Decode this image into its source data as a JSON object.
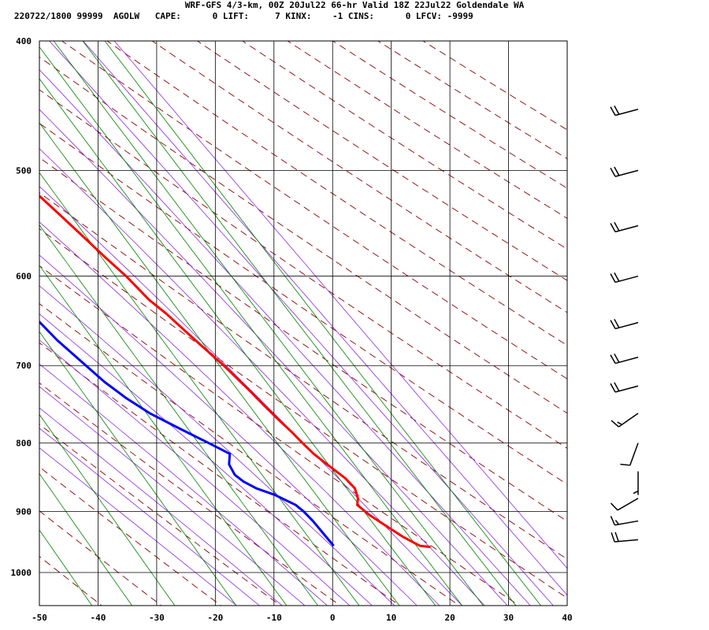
{
  "header": {
    "title": "WRF-GFS 4/3-km, 00Z 20Jul22 66-hr Valid 18Z 22Jul22 Goldendale WA",
    "subtitle": "220722/1800 99999  AGOLW   CAPE:      0 LIFT:     7 KINX:    -1 CINS:      0 LFCV: -9999"
  },
  "chart_data": {
    "type": "skew-t",
    "xlabel": "",
    "ylabel": "",
    "x_ticks": [
      -50,
      -40,
      -30,
      -20,
      -10,
      0,
      10,
      20,
      30,
      40
    ],
    "y_ticks": [
      400,
      500,
      600,
      700,
      800,
      900,
      1000
    ],
    "x_range": [
      -50,
      40
    ],
    "p_range": [
      400,
      1040
    ],
    "y_scale": "log",
    "grid": true,
    "colors": {
      "temperature": "#ff0000",
      "dewpoint": "#0000ff",
      "dry_adiabat": "#8b0000",
      "moist_adiabat": "#8a2be2",
      "mixing_ratio": "#008000",
      "grid": "#000000"
    },
    "series": [
      {
        "key": "temperature",
        "points": [
          [
            957,
            22.7
          ],
          [
            955,
            21
          ],
          [
            950,
            20.3
          ],
          [
            940,
            19
          ],
          [
            920,
            17
          ],
          [
            905,
            15.5
          ],
          [
            890,
            14.5
          ],
          [
            880,
            15.3
          ],
          [
            865,
            15.8
          ],
          [
            850,
            15.2
          ],
          [
            830,
            13.5
          ],
          [
            815,
            12.3
          ],
          [
            800,
            11.5
          ],
          [
            785,
            10.8
          ],
          [
            770,
            9.9
          ],
          [
            750,
            8.8
          ],
          [
            730,
            7.8
          ],
          [
            700,
            6
          ],
          [
            680,
            4.5
          ],
          [
            660,
            3
          ],
          [
            640,
            1.5
          ],
          [
            625,
            0
          ],
          [
            600,
            -1.5
          ],
          [
            580,
            -3.2
          ],
          [
            560,
            -4.8
          ],
          [
            540,
            -6.5
          ],
          [
            520,
            -8.3
          ],
          [
            500,
            -10.2
          ],
          [
            480,
            -12.3
          ],
          [
            460,
            -14.5
          ],
          [
            450,
            -15.7
          ]
        ]
      },
      {
        "key": "dewpoint",
        "points": [
          [
            955,
            6.3
          ],
          [
            935,
            5.8
          ],
          [
            915,
            5.3
          ],
          [
            900,
            4.7
          ],
          [
            890,
            4
          ],
          [
            875,
            1.5
          ],
          [
            865,
            -1
          ],
          [
            855,
            -2.5
          ],
          [
            845,
            -3.3
          ],
          [
            830,
            -3.2
          ],
          [
            815,
            -2
          ],
          [
            800,
            -4.5
          ],
          [
            780,
            -8
          ],
          [
            760,
            -11.5
          ],
          [
            740,
            -14
          ],
          [
            720,
            -16
          ],
          [
            700,
            -17.5
          ],
          [
            670,
            -19.8
          ],
          [
            640,
            -21.5
          ],
          [
            610,
            -23.6
          ],
          [
            585,
            -25.5
          ],
          [
            565,
            -27.3
          ],
          [
            540,
            -27.8
          ],
          [
            510,
            -28.8
          ],
          [
            485,
            -30
          ],
          [
            465,
            -31
          ],
          [
            450,
            -32
          ]
        ]
      }
    ],
    "wind_barbs": [
      {
        "p": 450,
        "dir": 255,
        "kt": 20
      },
      {
        "p": 500,
        "dir": 255,
        "kt": 20
      },
      {
        "p": 550,
        "dir": 255,
        "kt": 20
      },
      {
        "p": 600,
        "dir": 255,
        "kt": 20
      },
      {
        "p": 650,
        "dir": 255,
        "kt": 20
      },
      {
        "p": 690,
        "dir": 255,
        "kt": 20
      },
      {
        "p": 725,
        "dir": 255,
        "kt": 20
      },
      {
        "p": 760,
        "dir": 235,
        "kt": 15
      },
      {
        "p": 800,
        "dir": 200,
        "kt": 10
      },
      {
        "p": 840,
        "dir": 180,
        "kt": 5
      },
      {
        "p": 880,
        "dir": 240,
        "kt": 10
      },
      {
        "p": 915,
        "dir": 260,
        "kt": 15
      },
      {
        "p": 945,
        "dir": 265,
        "kt": 20
      }
    ]
  }
}
